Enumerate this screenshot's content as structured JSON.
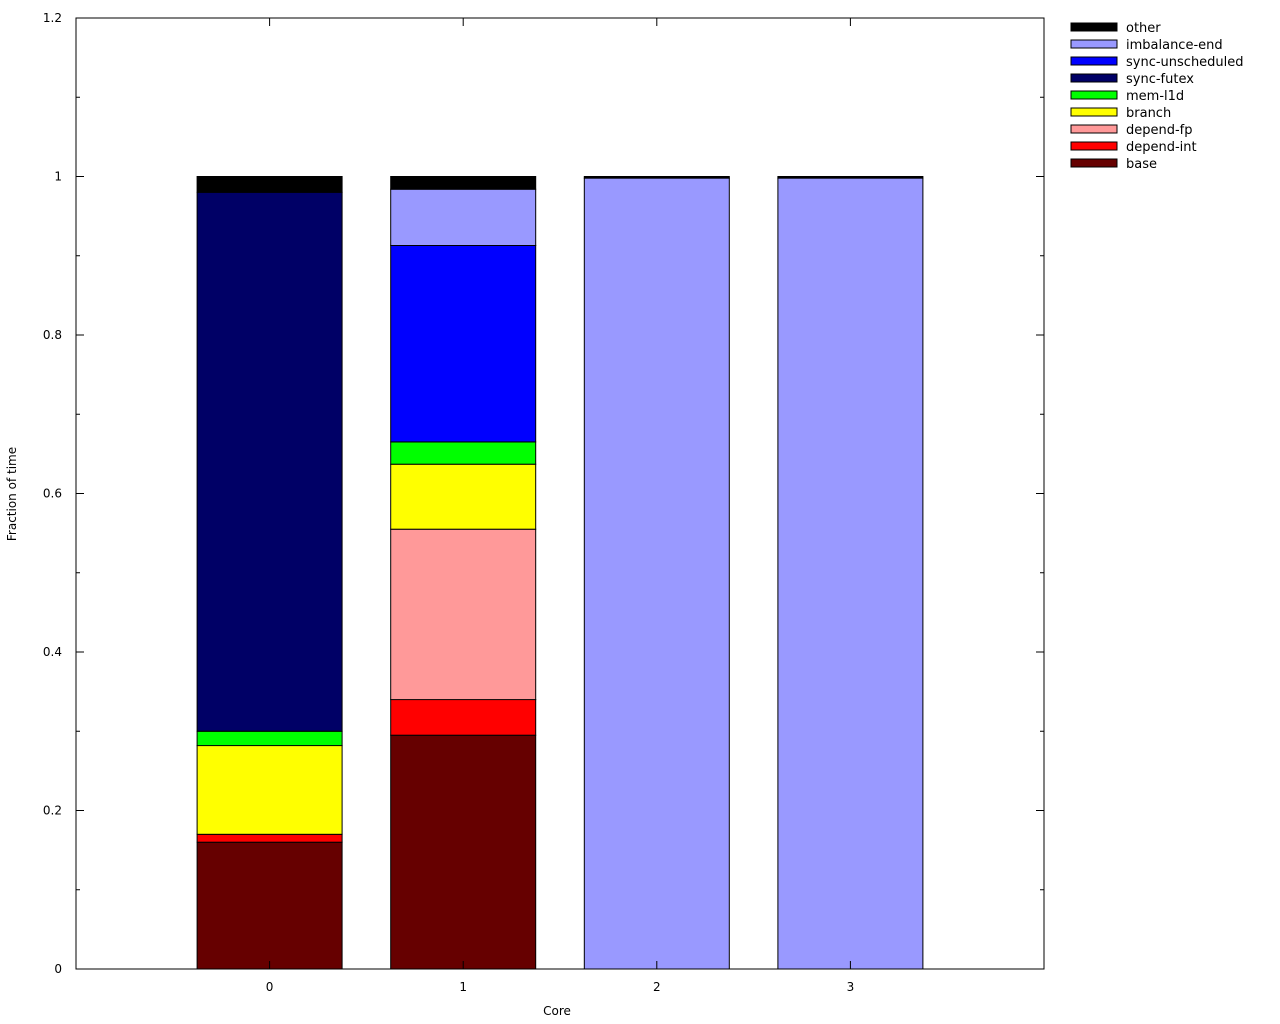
{
  "chart_data": {
    "type": "bar",
    "stacked": true,
    "xlabel": "Core",
    "ylabel": "Fraction of time",
    "ylim": [
      0,
      1.2
    ],
    "y_ticks": [
      0,
      0.2,
      0.4,
      0.6,
      0.8,
      1,
      1.2
    ],
    "y_tick_labels": [
      "0",
      "0.2",
      "0.4",
      "0.6",
      "0.8",
      "1",
      "1.2"
    ],
    "categories": [
      "0",
      "1",
      "2",
      "3"
    ],
    "legend_position": "outside-top-right",
    "grid": false,
    "series": [
      {
        "name": "base",
        "color": "#660000",
        "values": [
          0.16,
          0.295,
          0,
          0
        ]
      },
      {
        "name": "depend-int",
        "color": "#ff0000",
        "values": [
          0.01,
          0.045,
          0,
          0
        ]
      },
      {
        "name": "depend-fp",
        "color": "#ff9999",
        "values": [
          0,
          0.215,
          0,
          0
        ]
      },
      {
        "name": "branch",
        "color": "#ffff00",
        "values": [
          0.112,
          0.082,
          0,
          0
        ]
      },
      {
        "name": "mem-l1d",
        "color": "#00ff00",
        "values": [
          0.018,
          0.028,
          0,
          0
        ]
      },
      {
        "name": "sync-futex",
        "color": "#000066",
        "values": [
          0.68,
          0,
          0,
          0
        ]
      },
      {
        "name": "sync-unscheduled",
        "color": "#0000ff",
        "values": [
          0,
          0.248,
          0,
          0
        ]
      },
      {
        "name": "imbalance-end",
        "color": "#9999ff",
        "values": [
          0,
          0.071,
          0.998,
          0.998
        ]
      },
      {
        "name": "other",
        "color": "#000000",
        "values": [
          0.02,
          0.016,
          0.002,
          0.002
        ]
      }
    ]
  }
}
